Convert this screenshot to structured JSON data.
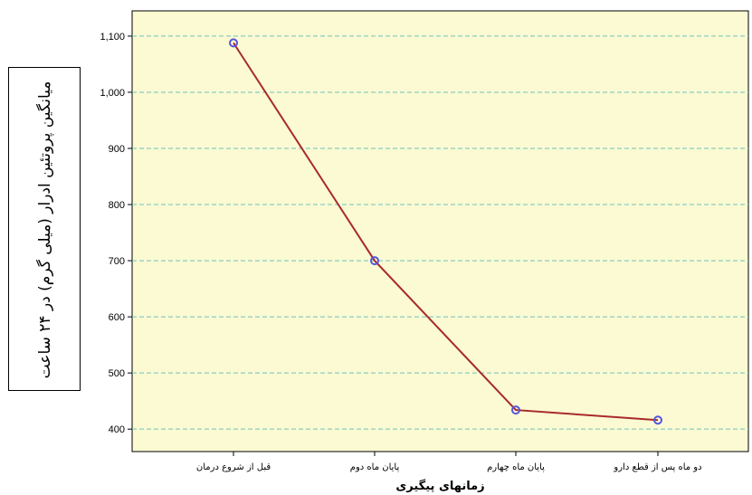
{
  "chart_data": {
    "type": "line",
    "title": "",
    "xlabel": "زمانهای پیگیری",
    "ylabel": "میانگین پروتئین ادرار (میلی گرم) در ۲۴ ساعت",
    "categories": [
      "قبل از شروع درمان",
      "پایان ماه دوم",
      "پایان ماه چهارم",
      "دو ماه پس از قطع دارو"
    ],
    "series": [
      {
        "values": [
          1088,
          700,
          434,
          416
        ]
      }
    ],
    "ylim": [
      360,
      1145
    ],
    "yticks": [
      400,
      500,
      600,
      700,
      800,
      900,
      1000,
      1100
    ],
    "ytick_labels": [
      "400",
      "500",
      "600",
      "700",
      "800",
      "900",
      "1,000",
      "1,100"
    ],
    "grid": true,
    "colors": {
      "plot_background": "#fbfad2",
      "line": "#a82a2a",
      "marker": "#5555dd",
      "grid": "#6fc2c0"
    }
  }
}
